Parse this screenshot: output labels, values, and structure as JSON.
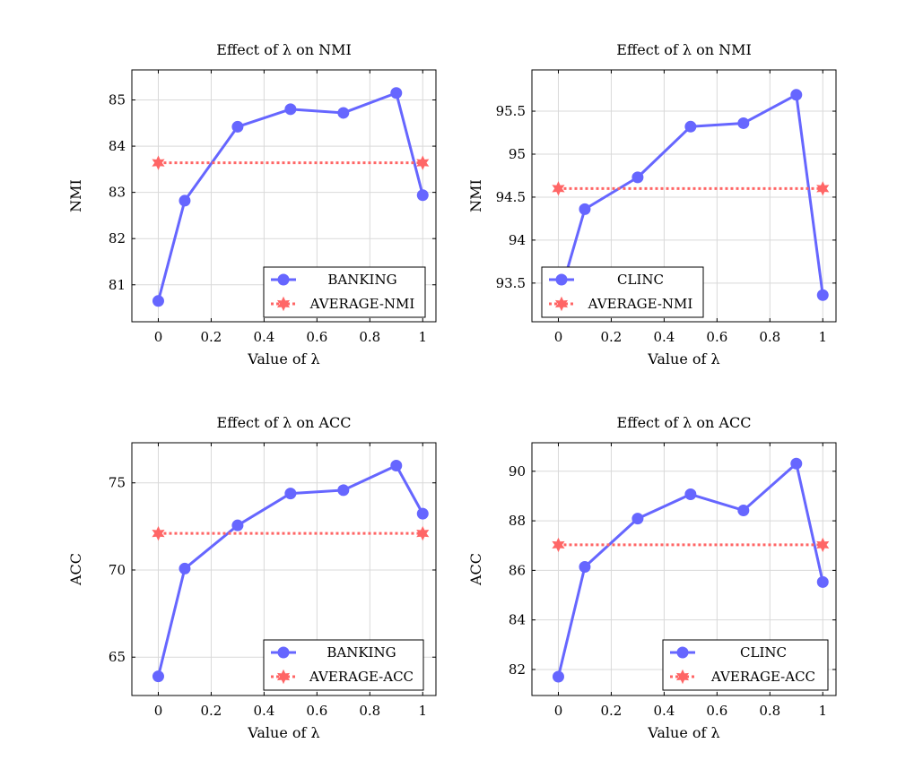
{
  "chart_data": [
    {
      "type": "line",
      "title": "Effect of λ on NMI",
      "xlabel": "Value of λ",
      "ylabel": "NMI",
      "xlim": [
        -0.1,
        1.05
      ],
      "ylim": [
        80.2,
        85.65
      ],
      "xticks": [
        0,
        0.2,
        0.4,
        0.6,
        0.8,
        1
      ],
      "xtick_labels": [
        "0",
        "0.2",
        "0.4",
        "0.6",
        "0.8",
        "1"
      ],
      "yticks": [
        81,
        82,
        83,
        84,
        85
      ],
      "ytick_labels": [
        "81",
        "82",
        "83",
        "84",
        "85"
      ],
      "grid": true,
      "legend_position": "bottom-right",
      "series": [
        {
          "name": "BANKING",
          "color": "#6666ff",
          "style": "solid",
          "marker": "circle",
          "x": [
            0,
            0.1,
            0.3,
            0.5,
            0.7,
            0.9,
            1
          ],
          "y": [
            80.65,
            82.82,
            84.42,
            84.8,
            84.72,
            85.15,
            82.94
          ]
        },
        {
          "name": "AVERAGE-NMI",
          "color": "#ff6666",
          "style": "dotted",
          "marker": "star",
          "x": [
            0,
            1
          ],
          "y": [
            83.64,
            83.64
          ]
        }
      ]
    },
    {
      "type": "line",
      "title": "Effect of λ on NMI",
      "xlabel": "Value of λ",
      "ylabel": "NMI",
      "xlim": [
        -0.1,
        1.05
      ],
      "ylim": [
        93.05,
        95.98
      ],
      "xticks": [
        0,
        0.2,
        0.4,
        0.6,
        0.8,
        1
      ],
      "xtick_labels": [
        "0",
        "0.2",
        "0.4",
        "0.6",
        "0.8",
        "1"
      ],
      "yticks": [
        93.5,
        94,
        94.5,
        95,
        95.5
      ],
      "ytick_labels": [
        "93.5",
        "94",
        "94.5",
        "95",
        "95.5"
      ],
      "grid": true,
      "legend_position": "bottom-right",
      "series": [
        {
          "name": "CLINC",
          "color": "#6666ff",
          "style": "solid",
          "marker": "circle",
          "x": [
            0,
            0.1,
            0.3,
            0.5,
            0.7,
            0.9,
            1
          ],
          "y": [
            93.3,
            94.36,
            94.73,
            95.32,
            95.36,
            95.69,
            93.36
          ]
        },
        {
          "name": "AVERAGE-NMI",
          "color": "#ff6666",
          "style": "dotted",
          "marker": "star",
          "x": [
            0,
            1
          ],
          "y": [
            94.6,
            94.6
          ]
        }
      ]
    },
    {
      "type": "line",
      "title": "Effect of λ on ACC",
      "xlabel": "Value of λ",
      "ylabel": "ACC",
      "xlim": [
        -0.1,
        1.05
      ],
      "ylim": [
        62.8,
        77.3
      ],
      "xticks": [
        0,
        0.2,
        0.4,
        0.6,
        0.8,
        1
      ],
      "xtick_labels": [
        "0",
        "0.2",
        "0.4",
        "0.6",
        "0.8",
        "1"
      ],
      "yticks": [
        65,
        70,
        75
      ],
      "ytick_labels": [
        "65",
        "70",
        "75"
      ],
      "grid": true,
      "legend_position": "bottom-right",
      "series": [
        {
          "name": "BANKING",
          "color": "#6666ff",
          "style": "solid",
          "marker": "circle",
          "x": [
            0,
            0.1,
            0.3,
            0.5,
            0.7,
            0.9,
            1
          ],
          "y": [
            63.9,
            70.08,
            72.56,
            74.39,
            74.58,
            75.99,
            73.23
          ]
        },
        {
          "name": "AVERAGE-ACC",
          "color": "#ff6666",
          "style": "dotted",
          "marker": "star",
          "x": [
            0,
            1
          ],
          "y": [
            72.1,
            72.1
          ]
        }
      ]
    },
    {
      "type": "line",
      "title": "Effect of λ on ACC",
      "xlabel": "Value of λ",
      "ylabel": "ACC",
      "xlim": [
        -0.1,
        1.05
      ],
      "ylim": [
        80.95,
        91.15
      ],
      "xticks": [
        0,
        0.2,
        0.4,
        0.6,
        0.8,
        1
      ],
      "xtick_labels": [
        "0",
        "0.2",
        "0.4",
        "0.6",
        "0.8",
        "1"
      ],
      "yticks": [
        82,
        84,
        86,
        88,
        90
      ],
      "ytick_labels": [
        "82",
        "84",
        "86",
        "88",
        "90"
      ],
      "grid": true,
      "legend_position": "bottom-right",
      "series": [
        {
          "name": "CLINC",
          "color": "#6666ff",
          "style": "solid",
          "marker": "circle",
          "x": [
            0,
            0.1,
            0.3,
            0.5,
            0.7,
            0.9,
            1
          ],
          "y": [
            81.71,
            86.14,
            88.09,
            89.07,
            88.42,
            90.31,
            85.53
          ]
        },
        {
          "name": "AVERAGE-ACC",
          "color": "#ff6666",
          "style": "dotted",
          "marker": "star",
          "x": [
            0,
            1
          ],
          "y": [
            87.03,
            87.03
          ]
        }
      ]
    }
  ]
}
